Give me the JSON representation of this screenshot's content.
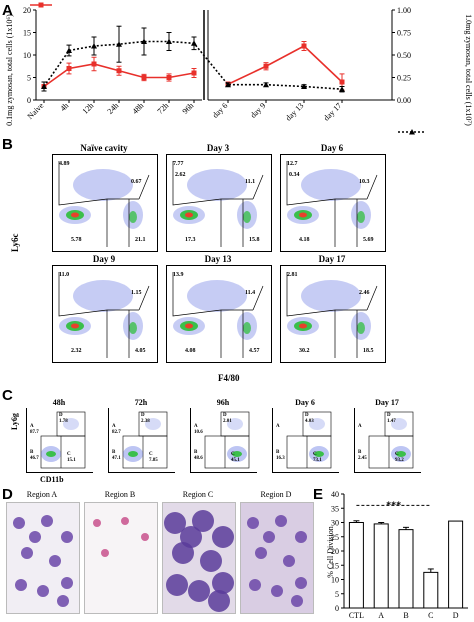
{
  "panels": {
    "A": "A",
    "B": "B",
    "C": "C",
    "D": "D",
    "E": "E"
  },
  "chart_data": [
    {
      "type": "line",
      "panel": "A",
      "categories": [
        "Naive",
        "4h",
        "12h",
        "24h",
        "48h",
        "72h",
        "96h",
        "day 6",
        "day 9",
        "day 13",
        "day 17"
      ],
      "legend_symbol_left": "",
      "legend_symbol_right": "",
      "ylabel_left": "0.1mg zymosan, total cells (1x10⁶)",
      "ylabel_right": "1.0mg zymosan, total cells (1x10⁷)",
      "yticks_left": [
        "0",
        "5",
        "10",
        "15",
        "20"
      ],
      "yticks_right": [
        "0.00",
        "0.25",
        "0.50",
        "0.75",
        "1.00"
      ],
      "ylim_left": [
        0,
        20
      ],
      "ylim_right": [
        0,
        1
      ],
      "series": [
        {
          "axis": "left",
          "color": "#e8302b",
          "values": [
            3,
            7,
            8,
            6.5,
            5,
            5,
            6,
            3.5,
            7.5,
            12,
            4
          ]
        },
        {
          "axis": "right",
          "color": "#000000",
          "values": [
            0.15,
            0.55,
            0.6,
            0.62,
            0.65,
            0.65,
            0.63,
            0.17,
            0.17,
            0.15,
            0.12
          ]
        }
      ],
      "xticks": [
        "Naive",
        "4h",
        "12h",
        "24h",
        "48h",
        "72h",
        "96h",
        "day 6",
        "day 9",
        "day 13",
        "day 17"
      ]
    },
    {
      "type": "bar",
      "panel": "E",
      "categories": [
        "CTL",
        "A",
        "B",
        "C",
        "D"
      ],
      "values": [
        30,
        29.5,
        27.5,
        12.5,
        30.5
      ],
      "errors": [
        0.6,
        0.5,
        0.8,
        1.2,
        0
      ],
      "ylabel": "% Cell Division",
      "ylim": [
        0,
        40
      ],
      "yticks": [
        "0",
        "5",
        "10",
        "15",
        "20",
        "25",
        "30",
        "35",
        "40"
      ],
      "annotation": "***"
    }
  ],
  "B": {
    "ylabel": "Ly6c",
    "xlabel": "F4/80",
    "plots": [
      {
        "title": "Naïve cavity",
        "q": [
          "4.89",
          "0.67",
          "5.78",
          "21.1"
        ]
      },
      {
        "title": "Day 3",
        "q": [
          "7.77",
          "11.1",
          "17.3",
          "15.8"
        ]
      },
      {
        "title": "Day 6",
        "q": [
          "12.7",
          "10.3",
          "4.18",
          "5.69"
        ]
      },
      {
        "title": "Day 9",
        "q": [
          "11.0",
          "1.15",
          "2.32",
          "4.05"
        ]
      },
      {
        "title": "Day 13",
        "q": [
          "13.9",
          "11.4",
          "4.08",
          "4.57"
        ]
      },
      {
        "title": "Day 17",
        "q": [
          "2.81",
          "2.46",
          "30.2",
          "18.5"
        ]
      }
    ],
    "extra": {
      "day6_mid": "0.34",
      "day3_mid": "2.62"
    }
  },
  "C": {
    "ylabel": "Ly6g",
    "xlabel": "CD11b",
    "plots": [
      {
        "title": "48h",
        "a": "A\n87.7",
        "b": "B\n46.7",
        "c": "C\n15.1",
        "d": "D\n1.78"
      },
      {
        "title": "72h",
        "a": "A\n82.7",
        "b": "B\n47.1",
        "c": "C\n7.85",
        "d": "D\n2.38"
      },
      {
        "title": "96h",
        "a": "A\n10.6",
        "b": "B\n48.6",
        "c": "C\n45.1",
        "d": "D\n2.01"
      },
      {
        "title": "Day 6",
        "a": "A\n",
        "b": "B\n16.3",
        "c": "C\n73.1",
        "d": "D\n4.03"
      },
      {
        "title": "Day 17",
        "a": "A\n",
        "b": "B\n2.45",
        "c": "C\n93.2",
        "d": "D\n1.47"
      }
    ]
  },
  "D": {
    "regions": [
      "Region A",
      "Region B",
      "Region C",
      "Region D"
    ]
  }
}
